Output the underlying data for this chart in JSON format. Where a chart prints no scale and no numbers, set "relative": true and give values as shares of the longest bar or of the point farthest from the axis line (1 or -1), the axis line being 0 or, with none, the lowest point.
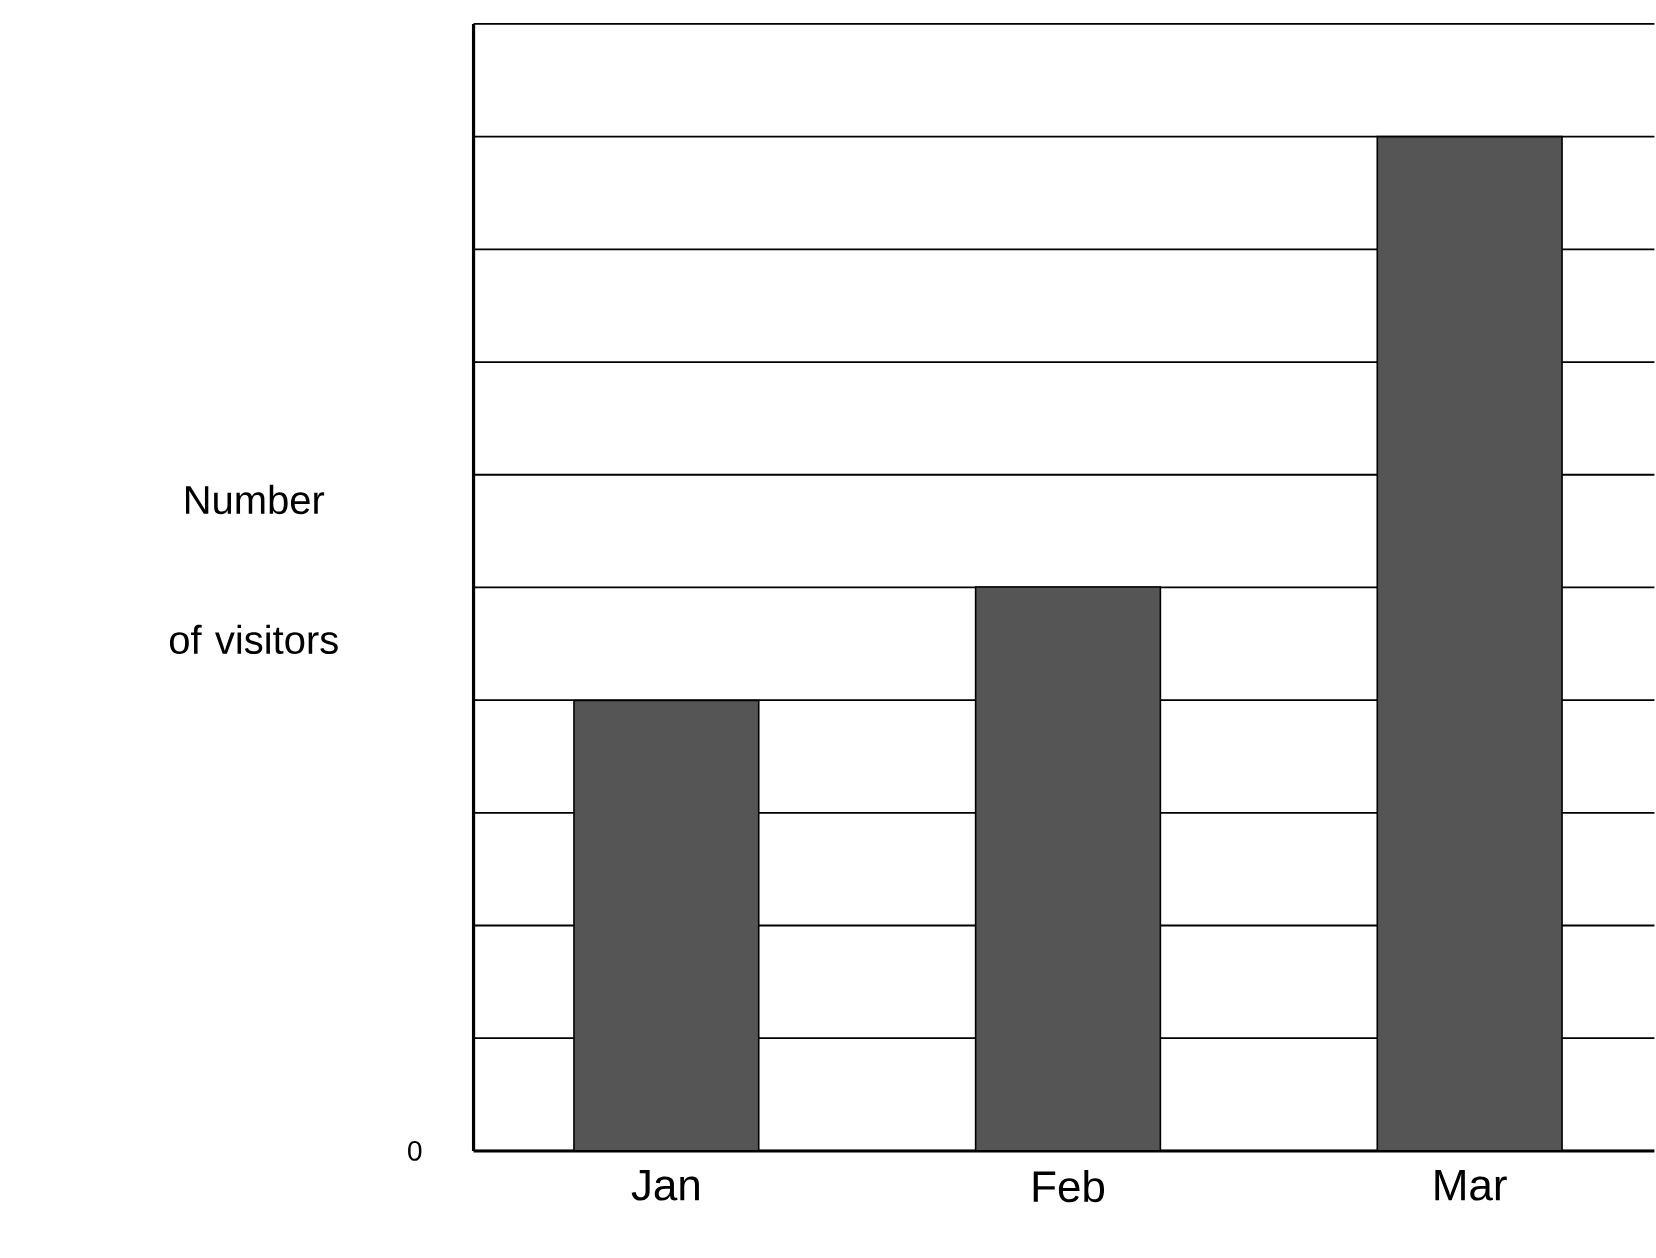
{
  "chart_data": {
    "type": "bar",
    "ylabel": "Number of visitors",
    "categories": [
      "Jan",
      "Feb",
      "Mar"
    ],
    "values": [
      0.444,
      0.556,
      1
    ],
    "color": "#555555",
    "relative": true,
    "grid": "y",
    "annotations": [
      "0"
    ]
  }
}
